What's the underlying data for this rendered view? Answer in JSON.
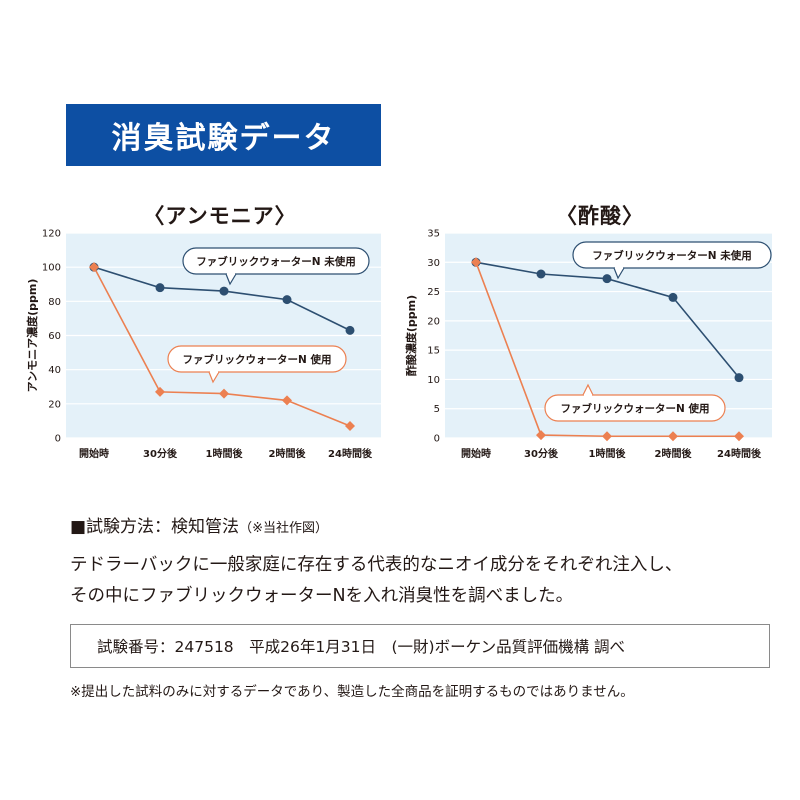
{
  "banner": {
    "title": "消臭試験データ"
  },
  "colors": {
    "banner": "#0d4fa3",
    "unused_series": "#2d4f71",
    "used_series": "#ec8051",
    "plot_bg": "#e4f1f9"
  },
  "chart_data": [
    {
      "type": "line",
      "title": "〈アンモニア〉",
      "xlabel": "",
      "ylabel": "アンモニア濃度(ppm)",
      "categories": [
        "開始時",
        "30分後",
        "1時間後",
        "2時間後",
        "24時間後"
      ],
      "ylim": [
        0,
        120
      ],
      "yticks": [
        "0",
        "20",
        "40",
        "60",
        "80",
        "100",
        "120"
      ],
      "grid": true,
      "series": [
        {
          "name": "ファブリックウォーターN 未使用",
          "values": [
            100,
            88,
            86,
            81,
            63
          ],
          "marker": "circle",
          "color": "#2d4f71"
        },
        {
          "name": "ファブリックウォーターN 使用",
          "values": [
            100,
            27,
            26,
            22,
            7
          ],
          "marker": "diamond",
          "color": "#ec8051"
        }
      ]
    },
    {
      "type": "line",
      "title": "〈酢酸〉",
      "xlabel": "",
      "ylabel": "酢酸濃度(ppm)",
      "categories": [
        "開始時",
        "30分後",
        "1時間後",
        "2時間後",
        "24時間後"
      ],
      "ylim": [
        0,
        35
      ],
      "yticks": [
        "0",
        "5",
        "10",
        "15",
        "20",
        "25",
        "30",
        "35"
      ],
      "grid": true,
      "series": [
        {
          "name": "ファブリックウォーターN 未使用",
          "values": [
            30,
            28,
            27.2,
            24,
            10.3
          ],
          "marker": "circle",
          "color": "#2d4f71"
        },
        {
          "name": "ファブリックウォーターN 使用",
          "values": [
            30,
            0.5,
            0.3,
            0.3,
            0.3
          ],
          "marker": "diamond",
          "color": "#ec8051"
        }
      ]
    }
  ],
  "method": {
    "label": "■試験方法：検知管法",
    "note": "（※当社作図）"
  },
  "description": {
    "line1": "テドラーバックに一般家庭に存在する代表的なニオイ成分をそれぞれ注入し、",
    "line2": "その中にファブリックウォーターNを入れ消臭性を調べました。"
  },
  "test_info": "試験番号：247518　平成26年1月31日　(一財)ボーケン品質評価機構 調べ",
  "disclaimer": "※提出した試料のみに対するデータであり、製造した全商品を証明するものではありません。"
}
